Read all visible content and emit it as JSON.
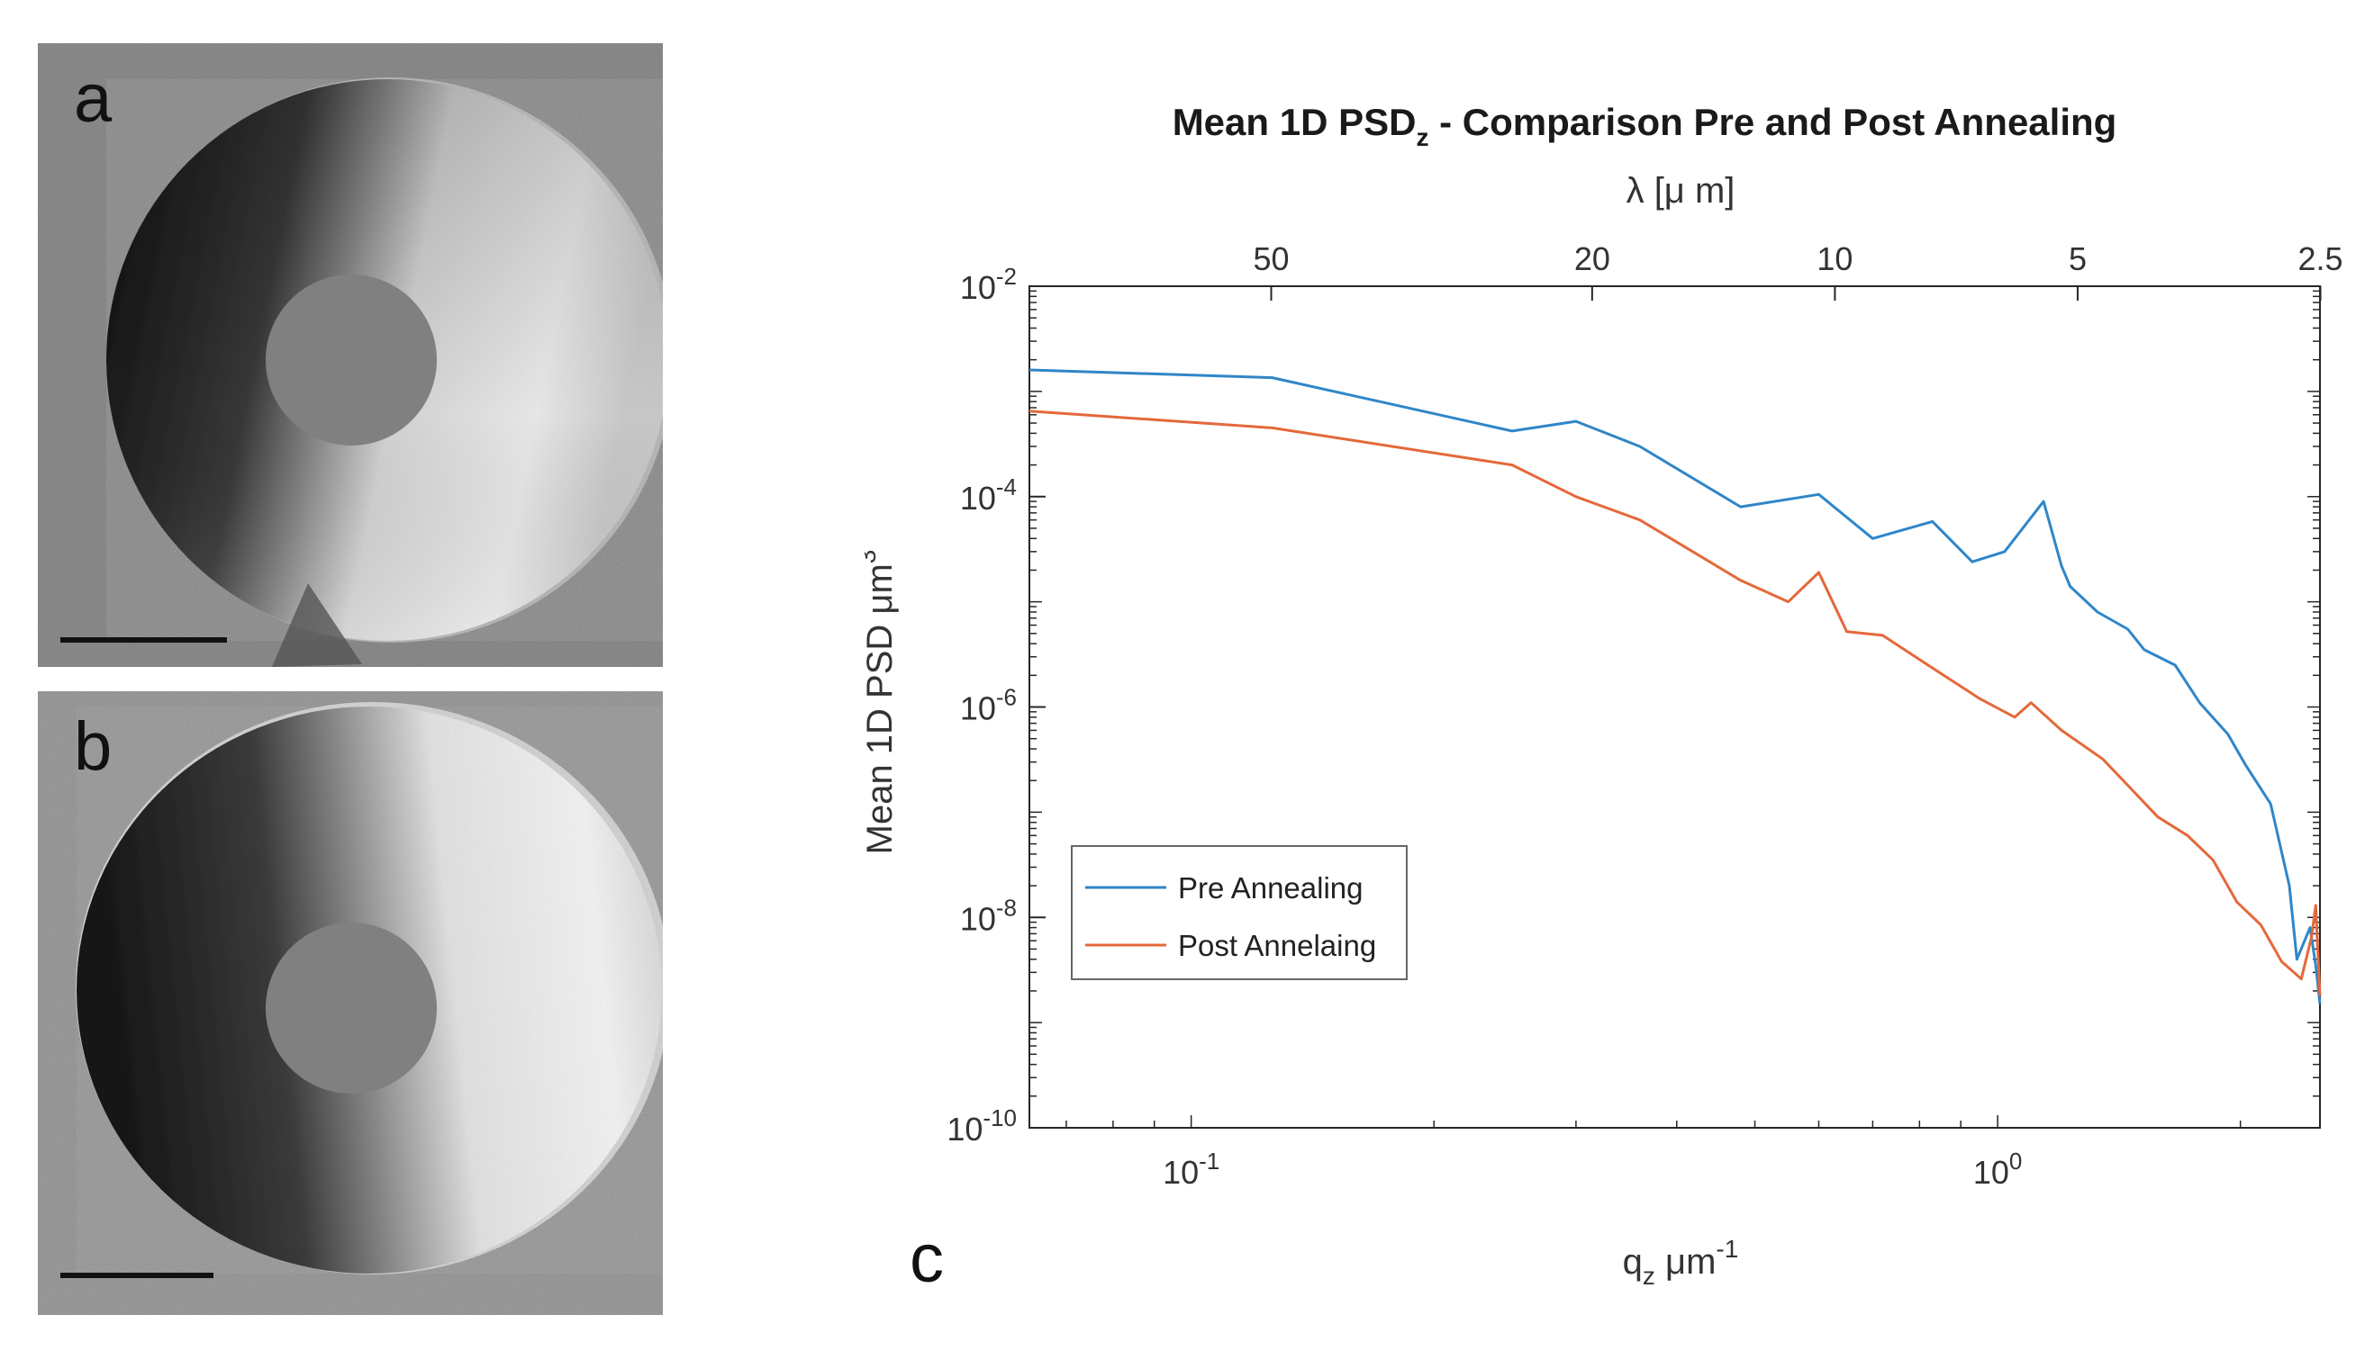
{
  "panels": {
    "a": {
      "letter": "a"
    },
    "b": {
      "letter": "b"
    },
    "c": {
      "letter": "c"
    }
  },
  "chart_data": {
    "type": "line",
    "title": "Mean 1D PSD",
    "title_sub": "z",
    "title_rest": "  - Comparison Pre and Post Annealing",
    "xlabel": "q",
    "xlabel_sub": "z",
    "xlabel_rest": " μm",
    "xlabel_sup": "-1",
    "ylabel": "Mean 1D PSD μm",
    "ylabel_sup": "3",
    "top_axis_label": "λ [μ m]",
    "x_scale": "log",
    "y_scale": "log",
    "xlim": [
      0.063,
      2.51
    ],
    "ylim": [
      1e-10,
      0.01
    ],
    "x_ticks": [
      {
        "base": "10",
        "exp": "-1",
        "value": 0.1
      },
      {
        "base": "10",
        "exp": "0",
        "value": 1.0
      }
    ],
    "y_ticks": [
      {
        "base": "10",
        "exp": "-2",
        "value": 0.01
      },
      {
        "base": "10",
        "exp": "-4",
        "value": 0.0001
      },
      {
        "base": "10",
        "exp": "-6",
        "value": 1e-06
      },
      {
        "base": "10",
        "exp": "-8",
        "value": 1e-08
      },
      {
        "base": "10",
        "exp": "-10",
        "value": 1e-10
      }
    ],
    "top_ticks": [
      {
        "label": "50",
        "value": 50
      },
      {
        "label": "20",
        "value": 20
      },
      {
        "label": "10",
        "value": 10
      },
      {
        "label": "5",
        "value": 5
      },
      {
        "label": "2.5",
        "value": 2.5
      }
    ],
    "legend_position": "lower-left",
    "grid": false,
    "series": [
      {
        "name": "Pre Annealing",
        "color": "#2f86c9",
        "x": [
          0.063,
          0.126,
          0.25,
          0.3,
          0.36,
          0.48,
          0.6,
          0.7,
          0.83,
          0.93,
          1.02,
          1.14,
          1.2,
          1.23,
          1.33,
          1.45,
          1.52,
          1.66,
          1.78,
          1.93,
          2.03,
          2.18,
          2.3,
          2.35,
          2.44,
          2.48,
          2.51
        ],
        "y": [
          0.0016,
          0.00135,
          0.00042,
          0.00052,
          0.0003,
          8e-05,
          0.000105,
          4e-05,
          5.8e-05,
          2.4e-05,
          3e-05,
          9e-05,
          2.2e-05,
          1.4e-05,
          8e-06,
          5.5e-06,
          3.5e-06,
          2.5e-06,
          1.1e-06,
          5.5e-07,
          2.8e-07,
          1.2e-07,
          2e-08,
          4e-09,
          8e-09,
          3.5e-09,
          1.5e-09
        ]
      },
      {
        "name": "Post Annelaing",
        "color": "#e5683a",
        "x": [
          0.063,
          0.126,
          0.25,
          0.3,
          0.36,
          0.48,
          0.55,
          0.6,
          0.65,
          0.72,
          0.82,
          0.95,
          1.05,
          1.1,
          1.2,
          1.35,
          1.45,
          1.58,
          1.72,
          1.85,
          1.98,
          2.12,
          2.25,
          2.38,
          2.45,
          2.48,
          2.51
        ],
        "y": [
          0.00065,
          0.00045,
          0.0002,
          0.0001,
          6e-05,
          1.6e-05,
          1e-05,
          1.9e-05,
          5.2e-06,
          4.8e-06,
          2.5e-06,
          1.2e-06,
          8e-07,
          1.1e-06,
          6e-07,
          3.2e-07,
          1.8e-07,
          9e-08,
          6e-08,
          3.5e-08,
          1.4e-08,
          8.5e-09,
          3.8e-09,
          2.6e-09,
          6.5e-09,
          1.3e-08,
          1.8e-09
        ]
      }
    ]
  }
}
